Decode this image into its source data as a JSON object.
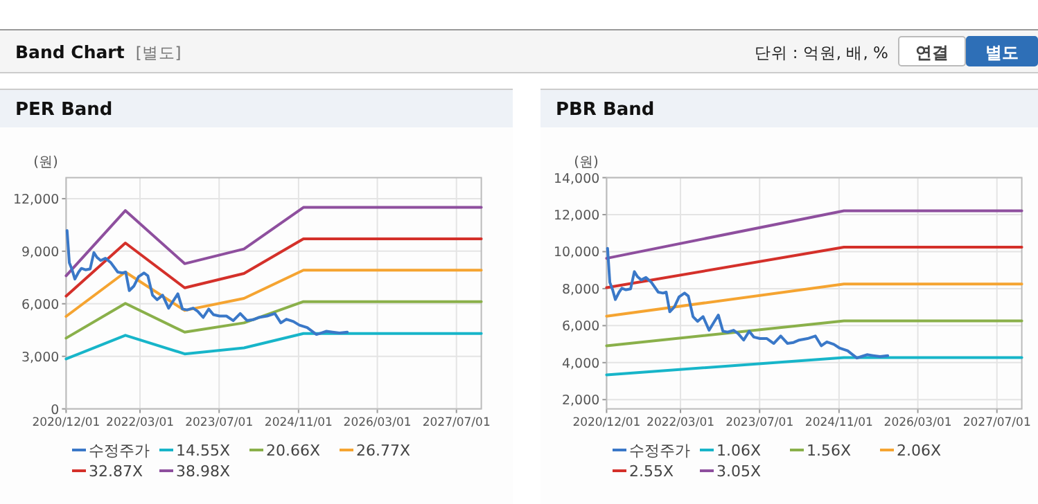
{
  "chart_data": [
    {
      "type": "other",
      "title": "Band Chart",
      "subtitle": "[별도]",
      "annotations": [
        "단위 : 억원, 배, %",
        "연결",
        "별도"
      ]
    },
    {
      "type": "line",
      "title": "PER Band",
      "ylabel": "(원)",
      "grid": true,
      "legend": "bottom",
      "xlim": [
        "2020-12-01",
        "2027-12-01"
      ],
      "ylim": [
        0,
        13200
      ],
      "xticks": [
        {
          "value": "2020-12-01",
          "label": "2020/12/01"
        },
        {
          "value": "2022-03-01",
          "label": "2022/03/01"
        },
        {
          "value": "2023-07-01",
          "label": "2023/07/01"
        },
        {
          "value": "2024-11-01",
          "label": "2024/11/01"
        },
        {
          "value": "2026-03-01",
          "label": "2026/03/01"
        },
        {
          "value": "2027-07-01",
          "label": "2027/07/01"
        }
      ],
      "yticks": [
        0,
        {
          "value": 3000,
          "label": "3,000"
        },
        {
          "value": 6000,
          "label": "6,000"
        },
        {
          "value": 9000,
          "label": "9,000"
        },
        {
          "value": 12000,
          "label": "12,000"
        }
      ],
      "series": [
        {
          "name": "수정주가",
          "color": "#3a78c8",
          "x": [
            "2020-12-07",
            "2020-12-21",
            "2021-01-07",
            "2021-01-24",
            "2021-02-16",
            "2021-03-05",
            "2021-03-30",
            "2021-04-28",
            "2021-05-21",
            "2021-06-09",
            "2021-07-02",
            "2021-07-31",
            "2021-09-03",
            "2021-10-15",
            "2021-11-13",
            "2021-12-03",
            "2021-12-25",
            "2022-01-23",
            "2022-02-20",
            "2022-03-26",
            "2022-04-18",
            "2022-05-17",
            "2022-06-14",
            "2022-07-18",
            "2022-08-24",
            "2022-09-22",
            "2022-10-20",
            "2022-11-17",
            "2022-12-16",
            "2023-01-22",
            "2023-02-19",
            "2023-03-25",
            "2023-04-28",
            "2023-05-27",
            "2023-07-03",
            "2023-08-15",
            "2023-09-26",
            "2023-11-08",
            "2023-12-20",
            "2024-01-26",
            "2024-03-01",
            "2024-04-21",
            "2024-06-08",
            "2024-07-15",
            "2024-08-18",
            "2024-09-30",
            "2024-11-06",
            "2024-12-24",
            "2025-02-19",
            "2025-03-19",
            "2025-04-22",
            "2025-05-29",
            "2025-07-11",
            "2025-08-28"
          ],
          "values": [
            10180,
            8340,
            7940,
            7410,
            7810,
            8020,
            7940,
            7990,
            8920,
            8650,
            8470,
            8600,
            8340,
            7810,
            7760,
            7810,
            6750,
            7020,
            7550,
            7760,
            7600,
            6490,
            6230,
            6490,
            5750,
            6170,
            6570,
            5700,
            5650,
            5750,
            5570,
            5220,
            5700,
            5380,
            5300,
            5300,
            5040,
            5440,
            5040,
            5090,
            5220,
            5300,
            5440,
            4910,
            5120,
            4990,
            4780,
            4640,
            4250,
            4330,
            4430,
            4380,
            4330,
            4380
          ]
        },
        {
          "name": "14.55X",
          "color": "#17b5c9",
          "x": [
            "2020-12-01",
            "2021-12-01",
            "2022-12-01",
            "2023-12-01",
            "2024-12-01",
            "2027-12-01"
          ],
          "values": [
            2850,
            4200,
            3140,
            3480,
            4300,
            4300
          ]
        },
        {
          "name": "20.66X",
          "color": "#8ab04a",
          "x": [
            "2020-12-01",
            "2021-12-01",
            "2022-12-01",
            "2023-12-01",
            "2024-12-01",
            "2027-12-01"
          ],
          "values": [
            4040,
            6020,
            4380,
            4910,
            6120,
            6120
          ]
        },
        {
          "name": "26.77X",
          "color": "#f5a431",
          "x": [
            "2020-12-01",
            "2021-12-01",
            "2022-12-01",
            "2023-12-01",
            "2024-12-01",
            "2027-12-01"
          ],
          "values": [
            5280,
            7810,
            5620,
            6310,
            7920,
            7920
          ]
        },
        {
          "name": "32.87X",
          "color": "#d4302a",
          "x": [
            "2020-12-01",
            "2021-12-01",
            "2022-12-01",
            "2023-12-01",
            "2024-12-01",
            "2027-12-01"
          ],
          "values": [
            6440,
            9470,
            6910,
            7730,
            9710,
            9710
          ]
        },
        {
          "name": "38.98X",
          "color": "#8e4f9e",
          "x": [
            "2020-12-01",
            "2021-12-01",
            "2022-12-01",
            "2023-12-01",
            "2024-12-01",
            "2027-12-01"
          ],
          "values": [
            7600,
            11320,
            8290,
            9130,
            11500,
            11500
          ]
        }
      ]
    },
    {
      "type": "line",
      "title": "PBR Band",
      "ylabel": "(원)",
      "grid": true,
      "legend": "bottom",
      "xlim": [
        "2020-12-01",
        "2027-12-01"
      ],
      "ylim": [
        1500,
        14000
      ],
      "xticks": [
        {
          "value": "2020-12-01",
          "label": "2020/12/01"
        },
        {
          "value": "2022-03-01",
          "label": "2022/03/01"
        },
        {
          "value": "2023-07-01",
          "label": "2023/07/01"
        },
        {
          "value": "2024-11-01",
          "label": "2024/11/01"
        },
        {
          "value": "2026-03-01",
          "label": "2026/03/01"
        },
        {
          "value": "2027-07-01",
          "label": "2027/07/01"
        }
      ],
      "yticks": [
        {
          "value": 2000,
          "label": "2,000"
        },
        {
          "value": 4000,
          "label": "4,000"
        },
        {
          "value": 6000,
          "label": "6,000"
        },
        {
          "value": 8000,
          "label": "8,000"
        },
        {
          "value": 10000,
          "label": "10,000"
        },
        {
          "value": 12000,
          "label": "12,000"
        },
        {
          "value": 14000,
          "label": "14,000"
        }
      ],
      "series": [
        {
          "name": "수정주가",
          "color": "#3a78c8",
          "x": [
            "2020-12-07",
            "2020-12-21",
            "2021-01-07",
            "2021-01-24",
            "2021-02-16",
            "2021-03-05",
            "2021-03-30",
            "2021-04-28",
            "2021-05-21",
            "2021-06-09",
            "2021-07-02",
            "2021-07-31",
            "2021-09-03",
            "2021-10-15",
            "2021-11-13",
            "2021-12-03",
            "2021-12-25",
            "2022-01-23",
            "2022-02-20",
            "2022-03-26",
            "2022-04-18",
            "2022-05-17",
            "2022-06-14",
            "2022-07-18",
            "2022-08-24",
            "2022-09-22",
            "2022-10-20",
            "2022-11-17",
            "2022-12-16",
            "2023-01-22",
            "2023-02-19",
            "2023-03-25",
            "2023-04-28",
            "2023-05-27",
            "2023-07-03",
            "2023-08-15",
            "2023-09-26",
            "2023-11-08",
            "2023-12-20",
            "2024-01-26",
            "2024-03-01",
            "2024-04-21",
            "2024-06-08",
            "2024-07-15",
            "2024-08-18",
            "2024-09-30",
            "2024-11-06",
            "2024-12-24",
            "2025-02-19",
            "2025-03-19",
            "2025-04-22",
            "2025-05-29",
            "2025-07-11",
            "2025-08-28"
          ],
          "values": [
            10180,
            8340,
            7940,
            7410,
            7810,
            8020,
            7940,
            7990,
            8920,
            8650,
            8470,
            8600,
            8340,
            7810,
            7760,
            7810,
            6750,
            7020,
            7550,
            7760,
            7600,
            6490,
            6230,
            6490,
            5750,
            6170,
            6570,
            5700,
            5650,
            5750,
            5570,
            5220,
            5700,
            5380,
            5300,
            5300,
            5040,
            5440,
            5040,
            5090,
            5220,
            5300,
            5440,
            4910,
            5120,
            4990,
            4780,
            4640,
            4250,
            4330,
            4430,
            4380,
            4330,
            4380
          ]
        },
        {
          "name": "1.06X",
          "color": "#17b5c9",
          "x": [
            "2020-12-01",
            "2024-12-01",
            "2027-12-01"
          ],
          "values": [
            3340,
            4270,
            4270
          ]
        },
        {
          "name": "1.56X",
          "color": "#8ab04a",
          "x": [
            "2020-12-01",
            "2024-12-01",
            "2027-12-01"
          ],
          "values": [
            4910,
            6260,
            6260
          ]
        },
        {
          "name": "2.06X",
          "color": "#f5a431",
          "x": [
            "2020-12-01",
            "2024-12-01",
            "2027-12-01"
          ],
          "values": [
            6510,
            8250,
            8250
          ]
        },
        {
          "name": "2.55X",
          "color": "#d4302a",
          "x": [
            "2020-12-01",
            "2024-12-01",
            "2027-12-01"
          ],
          "values": [
            8050,
            10240,
            10240
          ]
        },
        {
          "name": "3.05X",
          "color": "#8e4f9e",
          "x": [
            "2020-12-01",
            "2024-12-01",
            "2027-12-01"
          ],
          "values": [
            9640,
            12210,
            12210
          ]
        }
      ]
    }
  ]
}
